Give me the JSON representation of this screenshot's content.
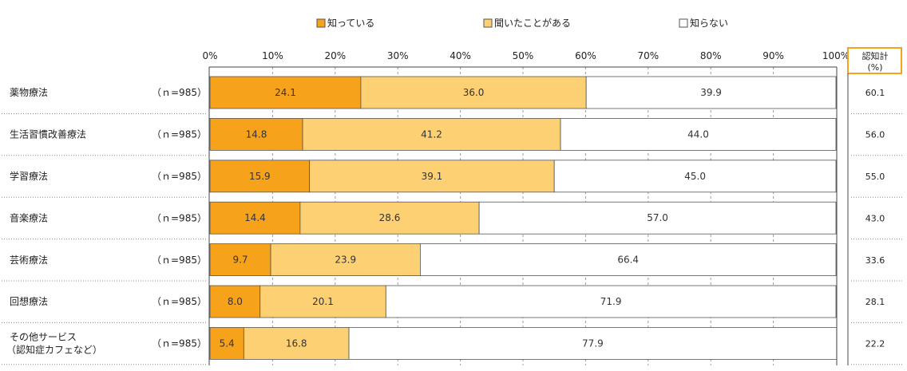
{
  "chart_data": {
    "type": "bar",
    "stacked": true,
    "orientation": "horizontal",
    "percent_axis": true,
    "xlim": [
      0,
      100
    ],
    "ticks": [
      "0%",
      "10%",
      "20%",
      "30%",
      "40%",
      "50%",
      "60%",
      "70%",
      "80%",
      "90%",
      "100%"
    ],
    "legend": {
      "placement": "top",
      "items": [
        {
          "label": "知っている",
          "color": "#f7a21b"
        },
        {
          "label": "聞いたことがある",
          "color": "#fdd073"
        },
        {
          "label": "知らない",
          "color": "#ffffff"
        }
      ]
    },
    "categories": [
      {
        "line1": "薬物療法",
        "line2": "",
        "n": "（ｎ=985）",
        "total": "60.1"
      },
      {
        "line1": "生活習慣改善療法",
        "line2": "",
        "n": "（ｎ=985）",
        "total": "56.0"
      },
      {
        "line1": "学習療法",
        "line2": "",
        "n": "（ｎ=985）",
        "total": "55.0"
      },
      {
        "line1": "音楽療法",
        "line2": "",
        "n": "（ｎ=985）",
        "total": "43.0"
      },
      {
        "line1": "芸術療法",
        "line2": "",
        "n": "（ｎ=985）",
        "total": "33.6"
      },
      {
        "line1": "回想療法",
        "line2": "",
        "n": "（ｎ=985）",
        "total": "28.1"
      },
      {
        "line1": "その他サービス",
        "line2": "（認知症カフェなど）",
        "n": "（ｎ=985）",
        "total": "22.2"
      }
    ],
    "series": [
      {
        "name": "知っている",
        "color": "#f7a21b",
        "values": [
          24.1,
          14.8,
          15.9,
          14.4,
          9.7,
          8.0,
          5.4
        ]
      },
      {
        "name": "聞いたことがある",
        "color": "#fdd073",
        "values": [
          36.0,
          41.2,
          39.1,
          28.6,
          23.9,
          20.1,
          16.8
        ]
      },
      {
        "name": "知らない",
        "color": "#ffffff",
        "values": [
          39.9,
          44.0,
          45.0,
          57.0,
          66.4,
          71.9,
          77.9
        ]
      }
    ],
    "total_column": {
      "title_line1": "認知計",
      "title_line2": "(%)",
      "border_color": "#f7a21b"
    }
  }
}
